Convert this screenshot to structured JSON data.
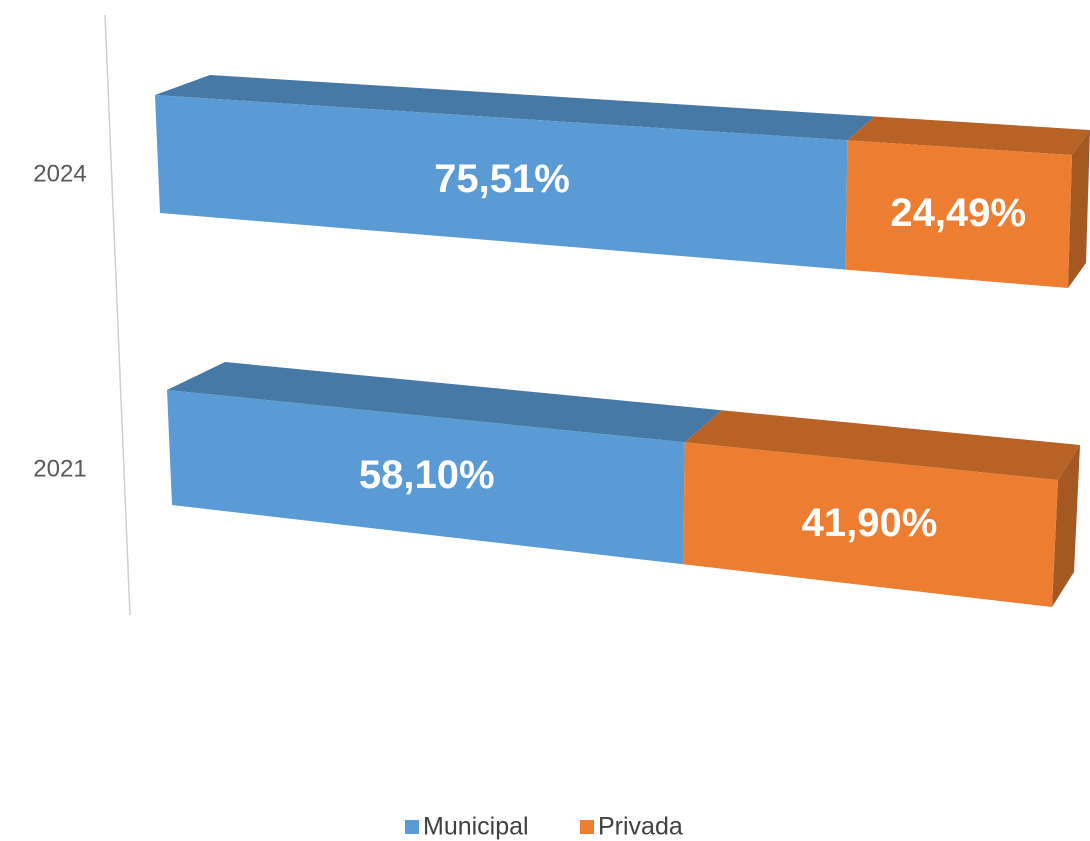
{
  "chart_data": {
    "type": "bar3d_stacked_horizontal",
    "categories": [
      "2024",
      "2021"
    ],
    "xlim": [
      0,
      100
    ],
    "series": [
      {
        "name": "Municipal",
        "color": "#5b9bd5",
        "values": [
          75.51,
          58.1
        ],
        "value_labels": [
          "75,51%",
          "58,10%"
        ]
      },
      {
        "name": "Privada",
        "color": "#ed7d31",
        "values": [
          24.49,
          41.9
        ],
        "value_labels": [
          "24,49%",
          "41,90%"
        ]
      }
    ]
  }
}
